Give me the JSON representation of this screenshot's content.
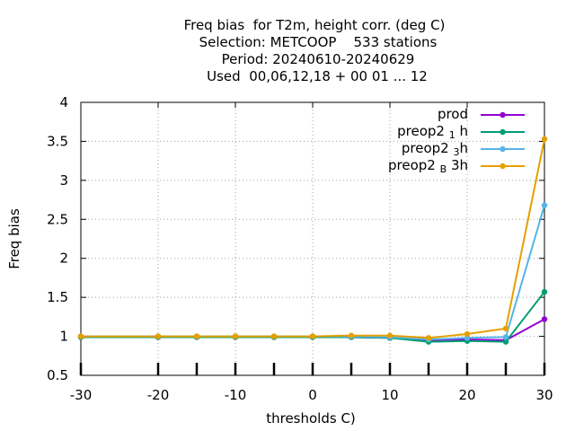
{
  "chart_data": {
    "type": "line",
    "title_lines": [
      "Freq bias  for T2m, height corr. (deg C)",
      "Selection: METCOOP    533 stations",
      "Period: 20240610-20240629",
      "Used  00,06,12,18 + 00 01 ... 12"
    ],
    "xlabel": "thresholds C)",
    "ylabel": "Freq bias",
    "xlim": [
      -30,
      30
    ],
    "ylim": [
      0.5,
      4
    ],
    "x_ticks": [
      -30,
      -20,
      -10,
      0,
      10,
      20,
      30
    ],
    "x_tick_labels": [
      "-30",
      "-20",
      "-10",
      "0",
      "10",
      "20",
      "30"
    ],
    "y_ticks": [
      0.5,
      1,
      1.5,
      2,
      2.5,
      3,
      3.5,
      4
    ],
    "y_tick_labels": [
      "0.5",
      "1",
      "1.5",
      "2",
      "2.5",
      "3",
      "3.5",
      "4"
    ],
    "x_grid": [
      -30,
      -20,
      -10,
      0,
      10,
      20,
      30
    ],
    "bottom_bar_ticks": [
      -30,
      -20,
      -15,
      -10,
      -5,
      0,
      5,
      10,
      15,
      20,
      25,
      30
    ],
    "grid": true,
    "legend_position": "top-right",
    "x": [
      -30,
      -20,
      -15,
      -10,
      -5,
      0,
      5,
      10,
      15,
      20,
      25,
      30
    ],
    "series": [
      {
        "name": "prod",
        "base": "prod",
        "sub": "",
        "suffix": "",
        "color": "#9400d3",
        "values": [
          0.99,
          0.99,
          0.99,
          0.99,
          0.99,
          0.99,
          0.99,
          0.98,
          0.95,
          0.96,
          0.95,
          1.22
        ]
      },
      {
        "name": "preop2 1 h",
        "base": "preop2 ",
        "sub": "1",
        "suffix": " h",
        "color": "#009e73",
        "values": [
          0.99,
          0.99,
          0.99,
          0.99,
          0.99,
          0.99,
          0.99,
          0.98,
          0.93,
          0.94,
          0.93,
          1.57
        ]
      },
      {
        "name": "preop2 3 h",
        "base": "preop2 ",
        "sub": "3",
        "suffix": "h",
        "color": "#56b4e9",
        "values": [
          1.0,
          1.0,
          1.0,
          1.0,
          1.0,
          1.0,
          1.0,
          0.99,
          0.96,
          0.98,
          0.99,
          2.68
        ]
      },
      {
        "name": "preop2 B 3h",
        "base": "preop2 ",
        "sub": "B",
        "suffix": " 3h",
        "color": "#e69f00",
        "values": [
          1.0,
          1.0,
          1.0,
          1.0,
          1.0,
          1.0,
          1.01,
          1.01,
          0.98,
          1.03,
          1.1,
          3.53
        ]
      }
    ]
  }
}
